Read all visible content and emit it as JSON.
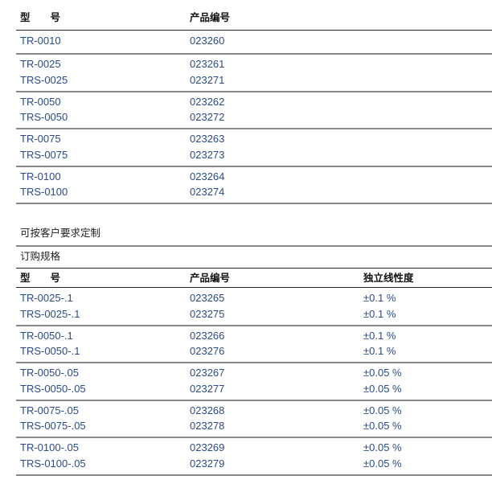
{
  "table1": {
    "headers": [
      "型　　号",
      "产品编号"
    ],
    "groups": [
      [
        [
          "TR-0010",
          "023260"
        ]
      ],
      [
        [
          "TR-0025",
          "023261"
        ],
        [
          "TRS-0025",
          "023271"
        ]
      ],
      [
        [
          "TR-0050",
          "023262"
        ],
        [
          "TRS-0050",
          "023272"
        ]
      ],
      [
        [
          "TR-0075",
          "023263"
        ],
        [
          "TRS-0075",
          "023273"
        ]
      ],
      [
        [
          "TR-0100",
          "023264"
        ],
        [
          "TRS-0100",
          "023274"
        ]
      ]
    ]
  },
  "custom_note": "可按客户要求定制",
  "order_title": "订购规格",
  "table2": {
    "headers": [
      "型　　号",
      "产品编号",
      "独立线性度"
    ],
    "groups": [
      [
        [
          "TR-0025-.1",
          "023265",
          "±0.1 %"
        ],
        [
          "TRS-0025-.1",
          "023275",
          "±0.1 %"
        ]
      ],
      [
        [
          "TR-0050-.1",
          "023266",
          "±0.1 %"
        ],
        [
          "TRS-0050-.1",
          "023276",
          "±0.1 %"
        ]
      ],
      [
        [
          "TR-0050-.05",
          "023267",
          "±0.05 %"
        ],
        [
          "TRS-0050-.05",
          "023277",
          "±0.05 %"
        ]
      ],
      [
        [
          "TR-0075-.05",
          "023268",
          "±0.05 %"
        ],
        [
          "TRS-0075-.05",
          "023278",
          "±0.05 %"
        ]
      ],
      [
        [
          "TR-0100-.05",
          "023269",
          "±0.05 %"
        ],
        [
          "TRS-0100-.05",
          "023279",
          "±0.05 %"
        ]
      ]
    ]
  }
}
